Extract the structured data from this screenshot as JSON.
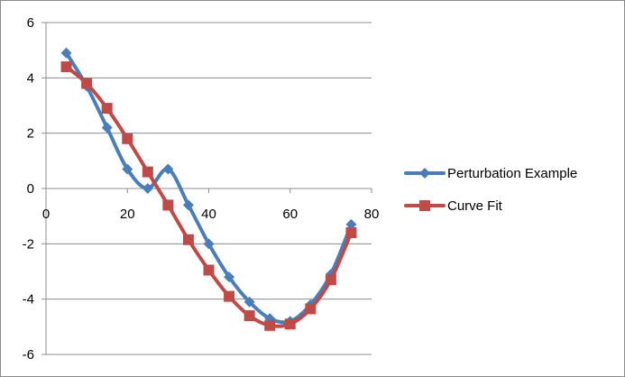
{
  "chart_data": {
    "type": "line",
    "x": [
      5,
      10,
      15,
      20,
      25,
      30,
      35,
      40,
      45,
      50,
      55,
      60,
      65,
      70,
      75
    ],
    "series": [
      {
        "name": "Perturbation Example",
        "color": "#4a7ebb",
        "marker": "diamond",
        "values": [
          4.9,
          3.7,
          2.2,
          0.7,
          0.0,
          0.7,
          -0.6,
          -2.0,
          -3.2,
          -4.1,
          -4.7,
          -4.8,
          -4.2,
          -3.1,
          -1.3
        ]
      },
      {
        "name": "Curve Fit",
        "color": "#be4b48",
        "marker": "square",
        "values": [
          4.4,
          3.8,
          2.9,
          1.8,
          0.6,
          -0.6,
          -1.85,
          -2.95,
          -3.9,
          -4.6,
          -4.95,
          -4.9,
          -4.35,
          -3.3,
          -1.6
        ]
      }
    ],
    "xlim": [
      0,
      80
    ],
    "ylim": [
      -6,
      6
    ],
    "x_ticks": [
      0,
      20,
      40,
      60,
      80
    ],
    "y_ticks": [
      -6,
      -4,
      -2,
      0,
      2,
      4,
      6
    ],
    "x_tick_labels": [
      "0",
      "20",
      "40",
      "60",
      "80"
    ],
    "y_tick_labels": [
      "-6",
      "-4",
      "-2",
      "0",
      "2",
      "4",
      "6"
    ],
    "grid": true,
    "legend_position": "right",
    "smooth": true
  }
}
